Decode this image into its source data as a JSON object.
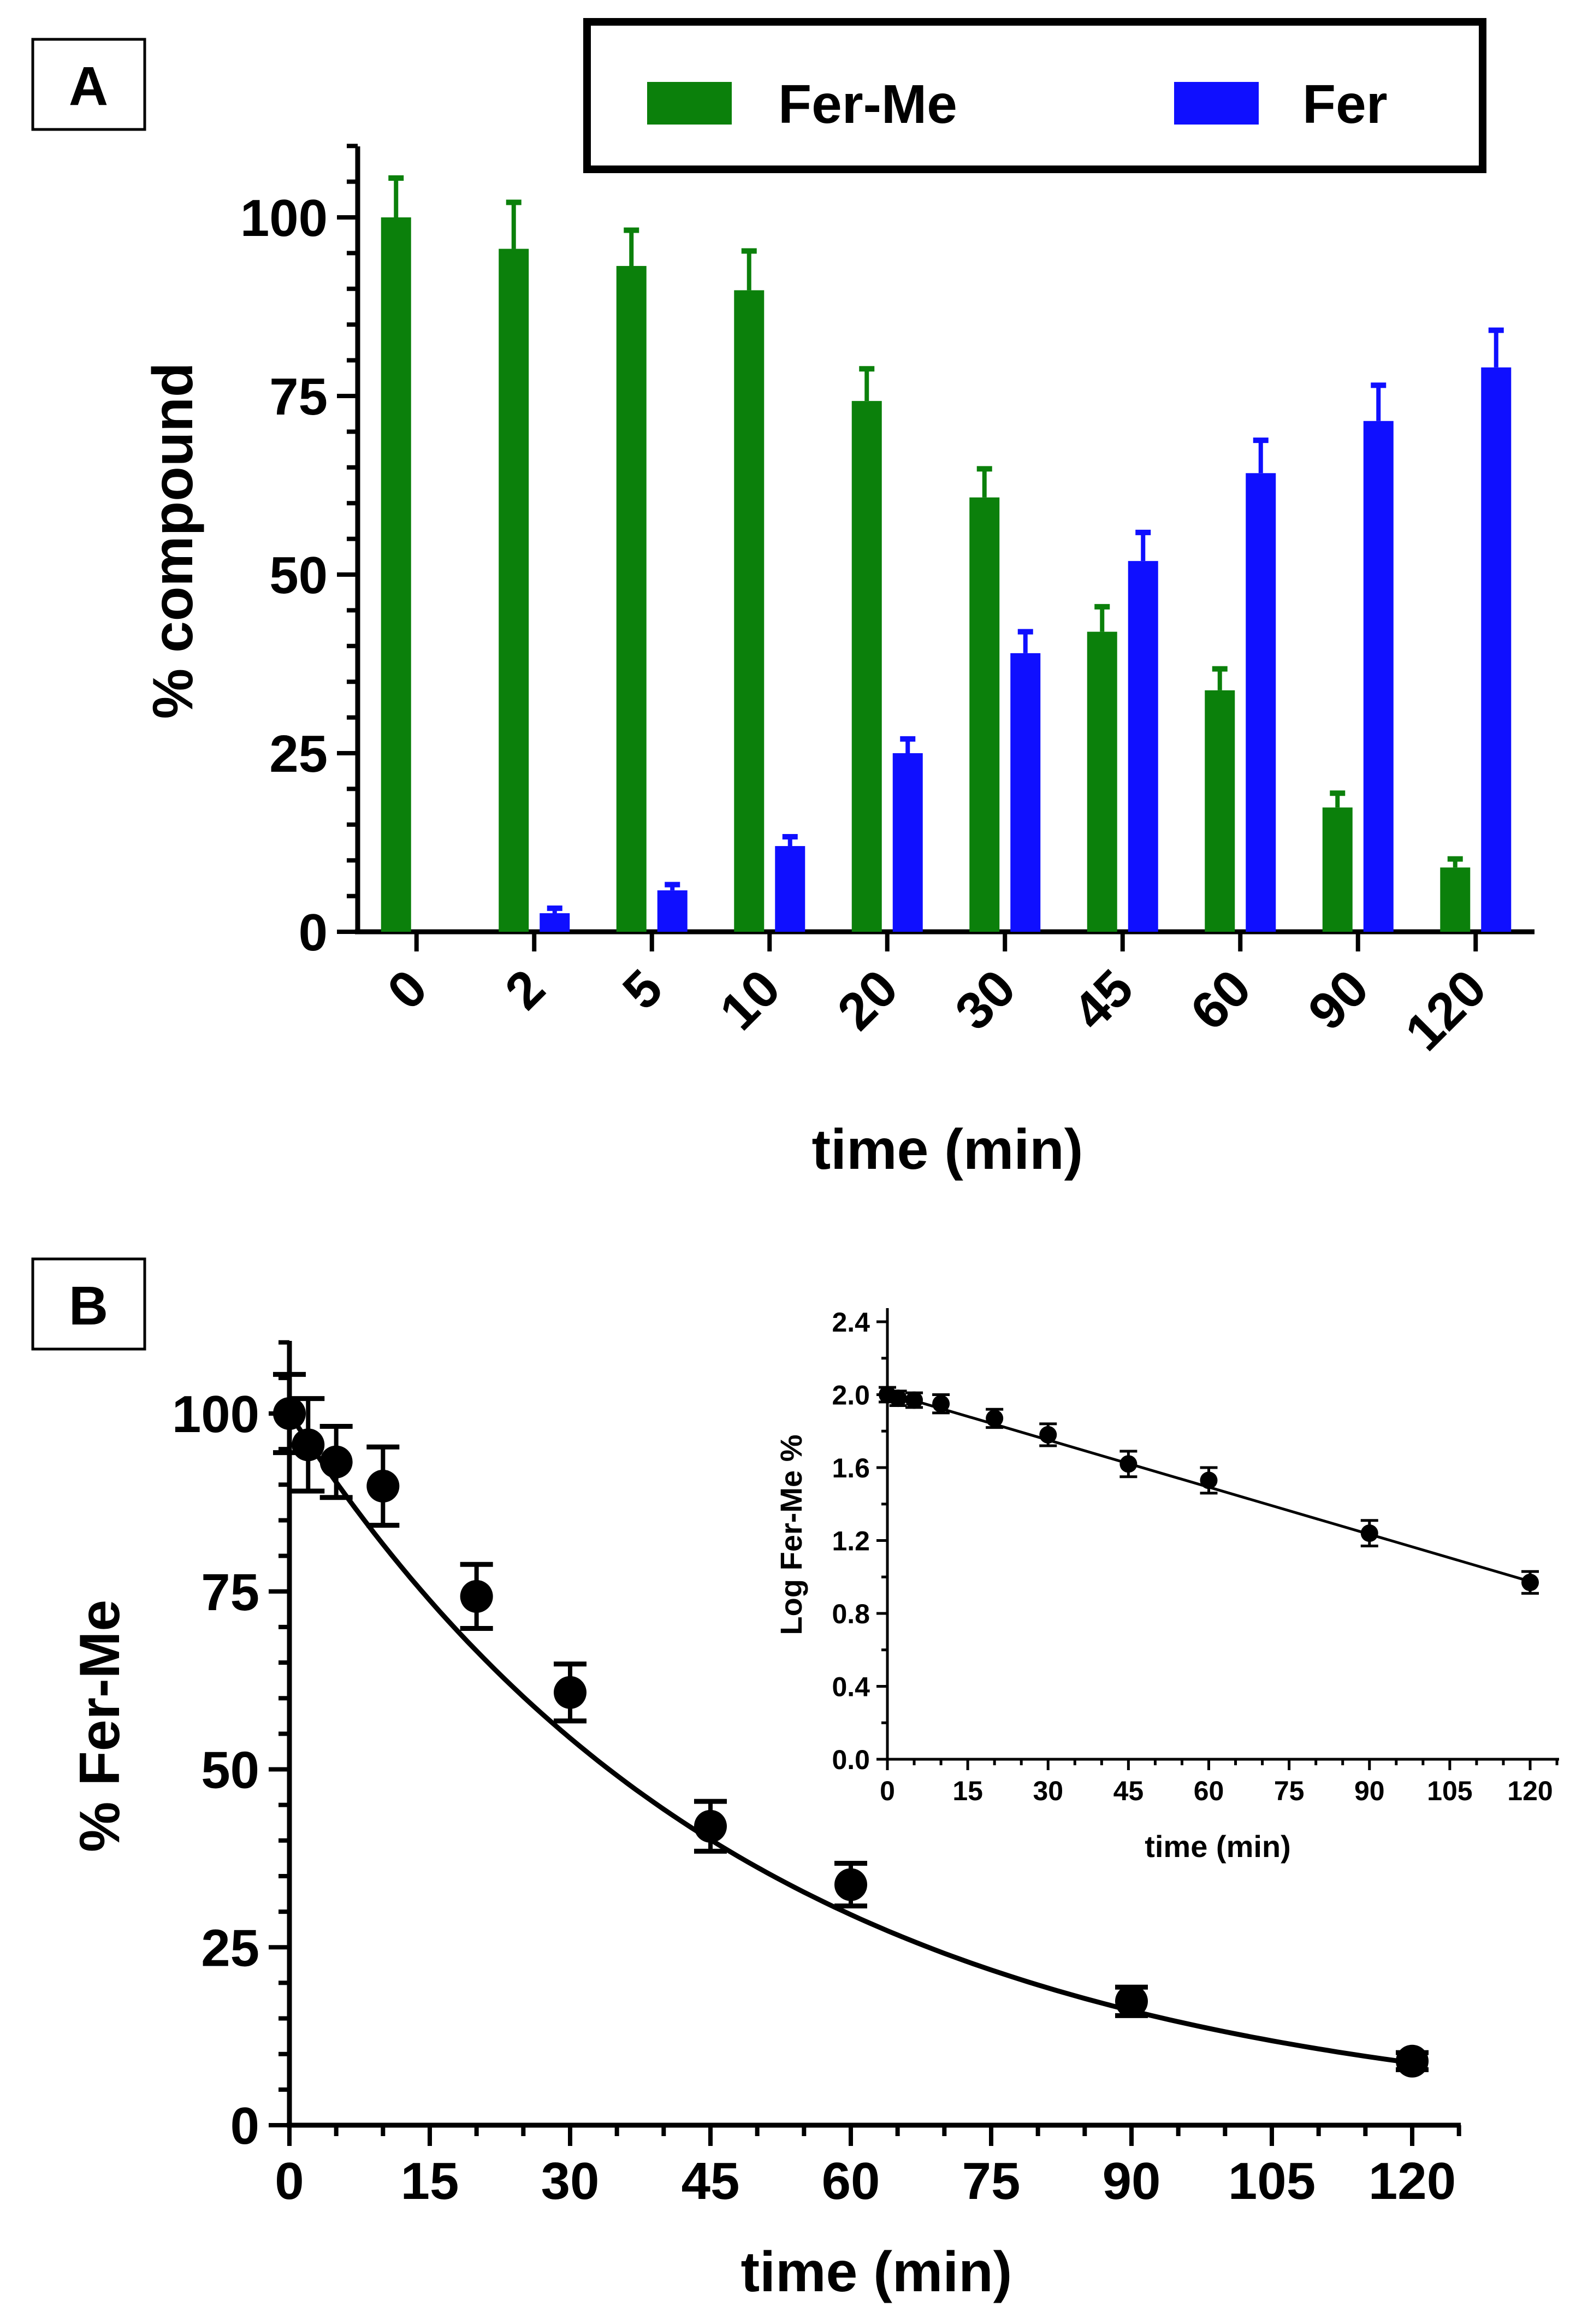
{
  "chart_data": [
    {
      "panel_label": "A",
      "type": "bar",
      "xlabel": "time (min)",
      "ylabel": "% compound",
      "ylim": [
        0,
        110
      ],
      "yticks": [
        "0",
        "25",
        "50",
        "75",
        "100"
      ],
      "categories": [
        "0",
        "2",
        "5",
        "10",
        "20",
        "30",
        "45",
        "60",
        "90",
        "120"
      ],
      "legend_position": "top-right",
      "series": [
        {
          "name": "Fer-Me",
          "color": "#0b800b",
          "values": [
            100,
            95.6,
            93.2,
            89.8,
            74.3,
            60.8,
            42,
            33.8,
            17.4,
            9
          ],
          "errors": [
            5.5,
            6.5,
            5,
            5.5,
            4.5,
            4,
            3.5,
            3,
            2,
            1.2
          ]
        },
        {
          "name": "Fer",
          "color": "#0f0fff",
          "values": [
            null,
            2.6,
            5.8,
            12,
            25,
            39,
            51.9,
            64.2,
            71.5,
            79
          ],
          "errors": [
            null,
            0.7,
            0.8,
            1.3,
            2,
            3,
            4,
            4.6,
            5,
            5.2
          ]
        }
      ]
    },
    {
      "panel_label": "B",
      "type": "scatter",
      "xlabel": "time (min)",
      "ylabel": "% Fer-Me",
      "xlim": [
        0,
        125
      ],
      "ylim": [
        0,
        110
      ],
      "xticks": [
        "0",
        "15",
        "30",
        "45",
        "60",
        "75",
        "90",
        "105",
        "120"
      ],
      "yticks": [
        "0",
        "25",
        "50",
        "75",
        "100"
      ],
      "points": {
        "x": [
          0,
          2,
          5,
          10,
          20,
          30,
          45,
          60,
          90,
          120
        ],
        "y": [
          100,
          95.6,
          93.2,
          89.8,
          74.3,
          60.8,
          42,
          33.8,
          17.4,
          9
        ],
        "errors": [
          5.5,
          6.5,
          5,
          5.5,
          4.5,
          4,
          3.5,
          3,
          2,
          1.2
        ]
      },
      "fit": {
        "model": "exponential decay",
        "y0": 100,
        "k": 0.0203
      }
    },
    {
      "panel_label": "",
      "type": "scatter",
      "inset": true,
      "xlabel": "time (min)",
      "ylabel": "Log Fer-Me %",
      "xlim": [
        0,
        125
      ],
      "ylim": [
        0,
        2.4
      ],
      "xticks": [
        "0",
        "15",
        "30",
        "45",
        "60",
        "75",
        "90",
        "105",
        "120"
      ],
      "yticks": [
        "0.0",
        "0.4",
        "0.8",
        "1.2",
        "1.6",
        "2.0",
        "2.4"
      ],
      "points": {
        "x": [
          0,
          2,
          5,
          10,
          20,
          30,
          45,
          60,
          90,
          120
        ],
        "y": [
          2.0,
          1.98,
          1.97,
          1.95,
          1.87,
          1.78,
          1.62,
          1.53,
          1.24,
          0.97
        ],
        "errors": [
          0.04,
          0.04,
          0.04,
          0.05,
          0.05,
          0.06,
          0.07,
          0.07,
          0.07,
          0.06
        ]
      },
      "fit": {
        "model": "linear",
        "intercept": 2.01,
        "slope": -0.00862
      }
    }
  ]
}
